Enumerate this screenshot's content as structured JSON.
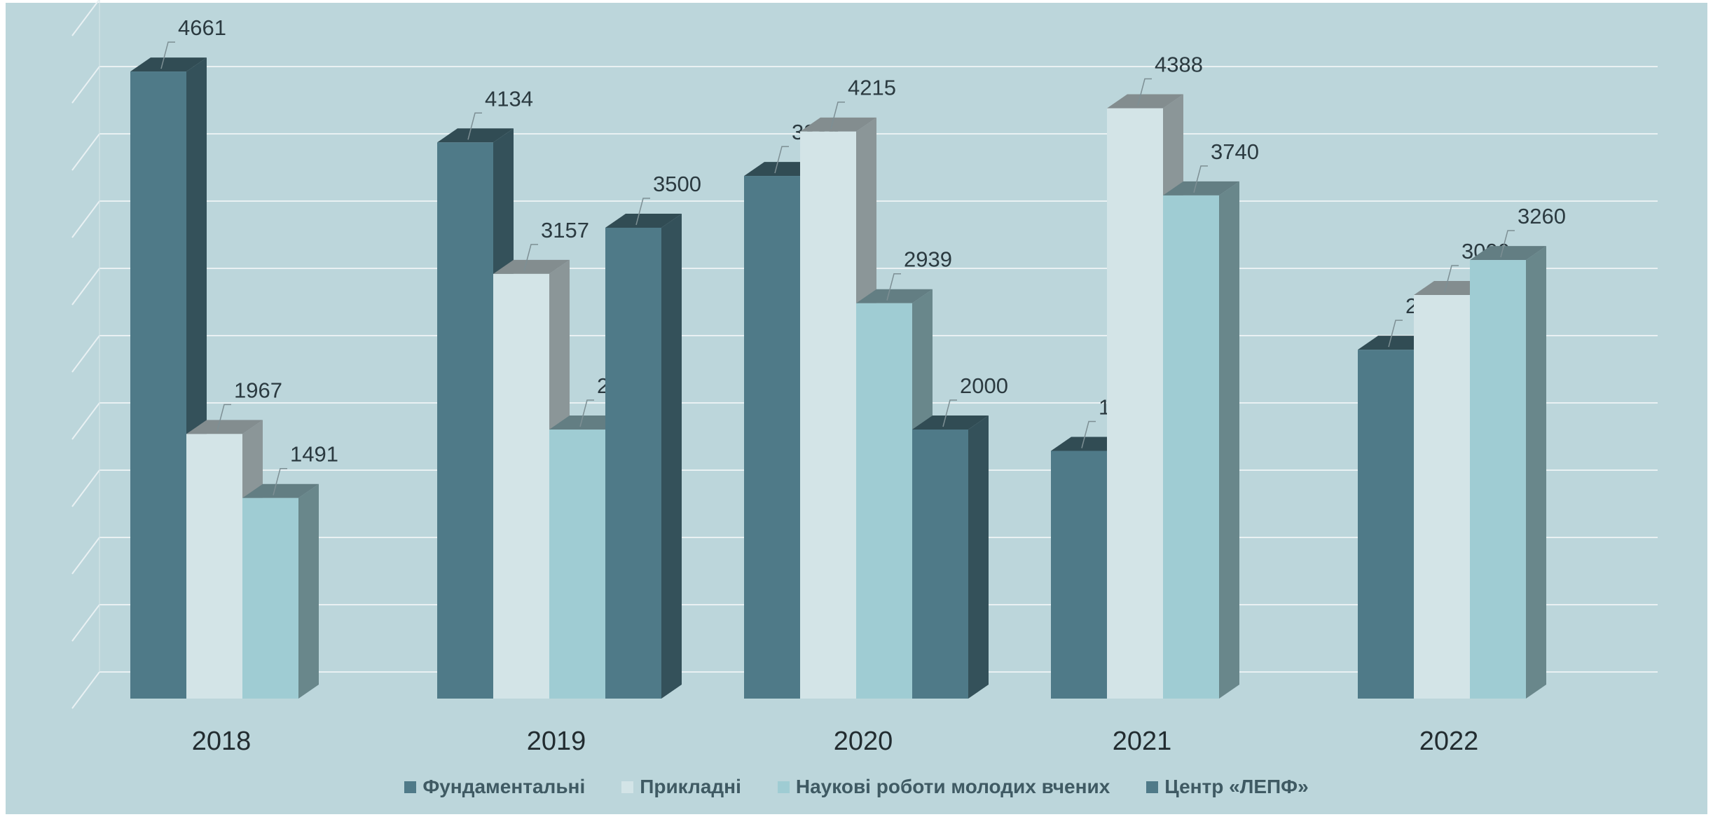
{
  "chart_data": {
    "type": "bar",
    "style": "3d-clustered-column",
    "categories": [
      "2018",
      "2019",
      "2020",
      "2021",
      "2022"
    ],
    "series": [
      {
        "name": "Фундаментальні",
        "color": "#4f7a88",
        "values": [
          4661,
          4134,
          3885,
          1841,
          2593
        ]
      },
      {
        "name": "Прикладні",
        "color": "#d3e4e7",
        "values": [
          1967,
          3157,
          4215,
          4388,
          3000
        ]
      },
      {
        "name": "Наукові роботи молодих вчених",
        "color": "#9fccd3",
        "values": [
          1491,
          2000,
          2939,
          3740,
          3260
        ]
      },
      {
        "name": "Центр «ЛЕПФ»",
        "color": "#4f7a88",
        "values": [
          null,
          3500,
          2000,
          null,
          null
        ]
      }
    ],
    "ylim": [
      0,
      5000
    ],
    "grid": true,
    "axis_tick_labels_shown": false,
    "legend_position": "bottom",
    "background_color": "#bcd6db"
  }
}
